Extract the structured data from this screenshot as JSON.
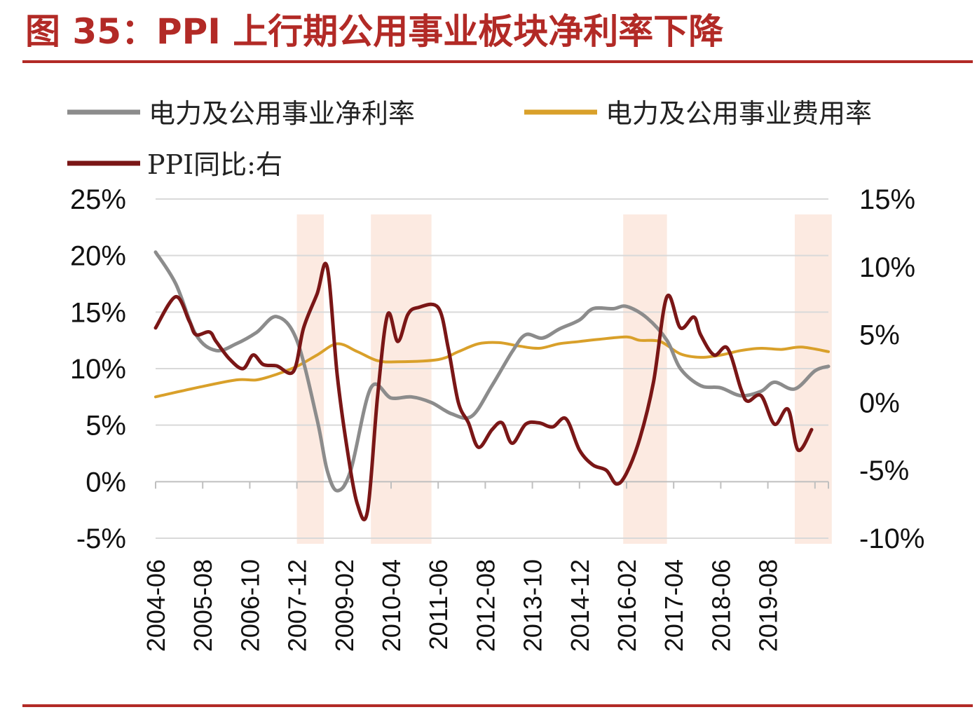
{
  "title": "图 35：PPI 上行期公用事业板块净利率下降",
  "colors": {
    "title": "#b22a26",
    "rule": "#b22a26",
    "net_margin": "#8c8c8c",
    "expense_ratio": "#d9a02a",
    "ppi": "#7a1616",
    "shading": "#fbe6dc",
    "grid": "#d9d9d9"
  },
  "chart_data": {
    "type": "line",
    "legend_position": "top",
    "grid": true,
    "x_ticks": [
      "2004-06",
      "2005-08",
      "2006-10",
      "2007-12",
      "2009-02",
      "2010-04",
      "2011-06",
      "2012-08",
      "2013-10",
      "2014-12",
      "2016-02",
      "2017-04",
      "2018-06",
      "2019-08"
    ],
    "y_left": {
      "ticks": [
        "25%",
        "20%",
        "15%",
        "10%",
        "5%",
        "0%",
        "-5%"
      ],
      "range": [
        -5,
        25
      ]
    },
    "y_right": {
      "ticks": [
        "15%",
        "10%",
        "5%",
        "0%",
        "-5%",
        "-10%"
      ],
      "range": [
        -10,
        15
      ]
    },
    "shaded_periods": [
      [
        "2007-12",
        "2008-08"
      ],
      [
        "2009-10",
        "2011-04"
      ],
      [
        "2016-01",
        "2017-02"
      ],
      [
        "2020-04",
        "2021-03"
      ]
    ],
    "series": [
      {
        "name": "电力及公用事业净利率",
        "axis": "left",
        "points": [
          [
            "2004-06",
            20.3
          ],
          [
            "2004-12",
            17.5
          ],
          [
            "2005-06",
            13.0
          ],
          [
            "2005-12",
            11.6
          ],
          [
            "2006-06",
            12.2
          ],
          [
            "2006-12",
            13.2
          ],
          [
            "2007-06",
            14.6
          ],
          [
            "2007-12",
            12.5
          ],
          [
            "2008-06",
            5.5
          ],
          [
            "2008-09",
            1.0
          ],
          [
            "2008-12",
            -0.8
          ],
          [
            "2009-04",
            1.0
          ],
          [
            "2009-10",
            8.3
          ],
          [
            "2010-04",
            7.4
          ],
          [
            "2010-10",
            7.5
          ],
          [
            "2011-04",
            7.0
          ],
          [
            "2011-10",
            6.0
          ],
          [
            "2012-04",
            5.8
          ],
          [
            "2012-10",
            8.5
          ],
          [
            "2013-04",
            11.5
          ],
          [
            "2013-08",
            13.0
          ],
          [
            "2014-01",
            12.7
          ],
          [
            "2014-06",
            13.5
          ],
          [
            "2014-12",
            14.3
          ],
          [
            "2015-04",
            15.3
          ],
          [
            "2015-10",
            15.3
          ],
          [
            "2016-02",
            15.5
          ],
          [
            "2016-08",
            14.5
          ],
          [
            "2017-02",
            12.5
          ],
          [
            "2017-06",
            10.0
          ],
          [
            "2017-12",
            8.5
          ],
          [
            "2018-06",
            8.3
          ],
          [
            "2018-12",
            7.6
          ],
          [
            "2019-06",
            8.0
          ],
          [
            "2019-10",
            8.8
          ],
          [
            "2020-04",
            8.2
          ],
          [
            "2020-10",
            9.8
          ],
          [
            "2021-02",
            10.2
          ]
        ]
      },
      {
        "name": "电力及公用事业费用率",
        "axis": "left",
        "points": [
          [
            "2004-06",
            7.5
          ],
          [
            "2005-06",
            8.3
          ],
          [
            "2006-06",
            9.0
          ],
          [
            "2006-12",
            9.0
          ],
          [
            "2007-06",
            9.5
          ],
          [
            "2007-12",
            10.2
          ],
          [
            "2008-06",
            11.2
          ],
          [
            "2008-12",
            12.2
          ],
          [
            "2009-06",
            11.5
          ],
          [
            "2009-12",
            10.7
          ],
          [
            "2010-06",
            10.6
          ],
          [
            "2011-06",
            10.8
          ],
          [
            "2011-12",
            11.5
          ],
          [
            "2012-06",
            12.2
          ],
          [
            "2012-12",
            12.3
          ],
          [
            "2013-06",
            12.0
          ],
          [
            "2013-12",
            11.8
          ],
          [
            "2014-06",
            12.2
          ],
          [
            "2014-12",
            12.4
          ],
          [
            "2015-06",
            12.6
          ],
          [
            "2016-02",
            12.8
          ],
          [
            "2016-06",
            12.5
          ],
          [
            "2016-12",
            12.4
          ],
          [
            "2017-06",
            11.3
          ],
          [
            "2017-12",
            11.0
          ],
          [
            "2018-06",
            11.2
          ],
          [
            "2018-12",
            11.6
          ],
          [
            "2019-06",
            11.8
          ],
          [
            "2019-12",
            11.7
          ],
          [
            "2020-06",
            11.9
          ],
          [
            "2021-02",
            11.5
          ]
        ]
      },
      {
        "name": "PPI同比:右",
        "axis": "right",
        "points": [
          [
            "2004-06",
            5.5
          ],
          [
            "2004-12",
            7.8
          ],
          [
            "2005-04",
            6.0
          ],
          [
            "2005-06",
            5.0
          ],
          [
            "2005-10",
            5.2
          ],
          [
            "2005-12",
            4.5
          ],
          [
            "2006-04",
            3.2
          ],
          [
            "2006-08",
            2.5
          ],
          [
            "2006-11",
            3.5
          ],
          [
            "2007-02",
            2.8
          ],
          [
            "2007-06",
            2.7
          ],
          [
            "2007-11",
            2.3
          ],
          [
            "2008-02",
            5.5
          ],
          [
            "2008-06",
            8.0
          ],
          [
            "2008-09",
            10.0
          ],
          [
            "2008-12",
            2.0
          ],
          [
            "2009-03",
            -3.5
          ],
          [
            "2009-06",
            -7.5
          ],
          [
            "2009-09",
            -8.0
          ],
          [
            "2009-12",
            0.5
          ],
          [
            "2010-03",
            6.5
          ],
          [
            "2010-06",
            4.5
          ],
          [
            "2010-09",
            6.5
          ],
          [
            "2010-12",
            7.0
          ],
          [
            "2011-06",
            7.0
          ],
          [
            "2011-09",
            4.0
          ],
          [
            "2011-12",
            0.0
          ],
          [
            "2012-03",
            -1.5
          ],
          [
            "2012-06",
            -3.3
          ],
          [
            "2012-10",
            -2.0
          ],
          [
            "2013-01",
            -1.5
          ],
          [
            "2013-04",
            -3.0
          ],
          [
            "2013-08",
            -1.6
          ],
          [
            "2013-12",
            -1.5
          ],
          [
            "2014-04",
            -1.8
          ],
          [
            "2014-08",
            -1.2
          ],
          [
            "2014-12",
            -3.5
          ],
          [
            "2015-04",
            -4.6
          ],
          [
            "2015-08",
            -5.0
          ],
          [
            "2015-11",
            -6.0
          ],
          [
            "2016-02",
            -5.2
          ],
          [
            "2016-06",
            -2.6
          ],
          [
            "2016-10",
            1.5
          ],
          [
            "2017-02",
            7.8
          ],
          [
            "2017-06",
            5.5
          ],
          [
            "2017-10",
            6.3
          ],
          [
            "2017-12",
            5.0
          ],
          [
            "2018-04",
            3.5
          ],
          [
            "2018-08",
            4.0
          ],
          [
            "2018-12",
            1.0
          ],
          [
            "2019-02",
            0.1
          ],
          [
            "2019-06",
            0.5
          ],
          [
            "2019-10",
            -1.6
          ],
          [
            "2020-02",
            -0.5
          ],
          [
            "2020-05",
            -3.5
          ],
          [
            "2020-09",
            -2.0
          ]
        ]
      }
    ]
  }
}
